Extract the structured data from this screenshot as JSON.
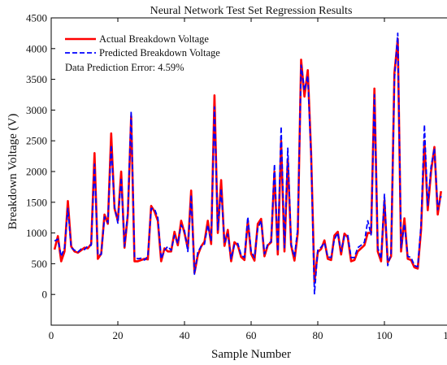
{
  "chart_data": {
    "type": "line",
    "title": "Neural Network Test Set Regression Results",
    "xlabel": "Sample Number",
    "ylabel": "Breakdown Voltage (V)",
    "xlim": [
      0,
      120
    ],
    "ylim": [
      -500,
      4500
    ],
    "xticks": [
      0,
      20,
      40,
      60,
      80,
      100,
      120
    ],
    "yticks": [
      0,
      500,
      1000,
      1500,
      2000,
      2500,
      3000,
      3500,
      4000,
      4500
    ],
    "xtick_labels": [
      "0",
      "20",
      "40",
      "60",
      "80",
      "100",
      "120"
    ],
    "ytick_labels": [
      "0",
      "500",
      "1000",
      "1500",
      "2000",
      "2500",
      "3000",
      "3500",
      "4000",
      "4500"
    ],
    "grid": false,
    "legend_position": "top-left",
    "annotation": "Data Prediction Error: 4.59%",
    "x": [
      1,
      2,
      3,
      4,
      5,
      6,
      7,
      8,
      9,
      10,
      11,
      12,
      13,
      14,
      15,
      16,
      17,
      18,
      19,
      20,
      21,
      22,
      23,
      24,
      25,
      26,
      27,
      28,
      29,
      30,
      31,
      32,
      33,
      34,
      35,
      36,
      37,
      38,
      39,
      40,
      41,
      42,
      43,
      44,
      45,
      46,
      47,
      48,
      49,
      50,
      51,
      52,
      53,
      54,
      55,
      56,
      57,
      58,
      59,
      60,
      61,
      62,
      63,
      64,
      65,
      66,
      67,
      68,
      69,
      70,
      71,
      72,
      73,
      74,
      75,
      76,
      77,
      78,
      79,
      80,
      81,
      82,
      83,
      84,
      85,
      86,
      87,
      88,
      89,
      90,
      91,
      92,
      93,
      94,
      95,
      96,
      97,
      98,
      99,
      100,
      101,
      102,
      103,
      104,
      105,
      106,
      107,
      108,
      109,
      110,
      111,
      112,
      113,
      114,
      115,
      116,
      117
    ],
    "series": [
      {
        "name": "Actual Breakdown Voltage",
        "color": "#ff0000",
        "style": "solid",
        "values": [
          730,
          950,
          540,
          700,
          1520,
          780,
          700,
          680,
          720,
          760,
          750,
          820,
          2300,
          580,
          660,
          1300,
          1150,
          2620,
          1400,
          1200,
          2000,
          760,
          1300,
          2900,
          540,
          540,
          560,
          580,
          570,
          1440,
          1350,
          1200,
          540,
          750,
          700,
          700,
          1020,
          800,
          1200,
          1000,
          750,
          1690,
          350,
          640,
          780,
          860,
          1200,
          820,
          3240,
          1000,
          1860,
          790,
          1050,
          540,
          850,
          800,
          610,
          560,
          1200,
          660,
          550,
          1150,
          1230,
          620,
          800,
          850,
          2000,
          650,
          2500,
          700,
          2200,
          800,
          550,
          1000,
          3820,
          3220,
          3650,
          2300,
          200,
          690,
          740,
          880,
          580,
          560,
          960,
          1020,
          650,
          990,
          930,
          540,
          560,
          700,
          750,
          800,
          1000,
          1000,
          3350,
          700,
          540,
          1530,
          520,
          620,
          3600,
          4160,
          700,
          1240,
          580,
          560,
          440,
          420,
          1050,
          2500,
          1370,
          2000,
          2400,
          1300,
          1680
        ]
      },
      {
        "name": "Predicted Breakdown Voltage",
        "color": "#0000ff",
        "style": "dashed",
        "values": [
          870,
          900,
          620,
          760,
          1400,
          760,
          720,
          690,
          740,
          730,
          790,
          800,
          2120,
          640,
          650,
          1260,
          1170,
          2430,
          1430,
          1160,
          1900,
          780,
          1340,
          2980,
          610,
          580,
          590,
          560,
          620,
          1400,
          1390,
          1250,
          580,
          720,
          780,
          720,
          960,
          830,
          1130,
          1040,
          700,
          1620,
          330,
          690,
          780,
          820,
          1130,
          870,
          3050,
          1050,
          1720,
          850,
          980,
          580,
          810,
          830,
          640,
          600,
          1260,
          700,
          600,
          1080,
          1200,
          660,
          820,
          860,
          2120,
          700,
          2730,
          760,
          2380,
          820,
          610,
          1080,
          3730,
          3320,
          3560,
          2240,
          10,
          720,
          770,
          840,
          610,
          600,
          900,
          1000,
          700,
          950,
          960,
          600,
          600,
          760,
          800,
          850,
          1200,
          970,
          3250,
          760,
          580,
          1630,
          470,
          670,
          3500,
          4250,
          760,
          1150,
          620,
          600,
          470,
          450,
          1140,
          2760,
          1440,
          2080,
          2380,
          1380,
          1600
        ]
      }
    ]
  }
}
